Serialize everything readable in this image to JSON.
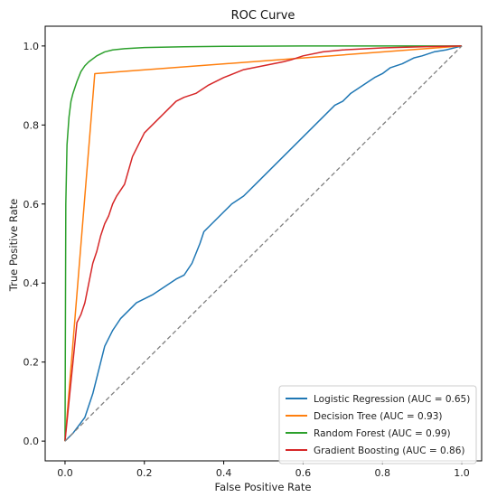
{
  "chart_data": {
    "type": "line",
    "title": "ROC Curve",
    "xlabel": "False Positive Rate",
    "ylabel": "True Positive Rate",
    "xlim": [
      -0.05,
      1.05
    ],
    "ylim": [
      -0.05,
      1.05
    ],
    "xticks": [
      "0.0",
      "0.2",
      "0.4",
      "0.6",
      "0.8",
      "1.0"
    ],
    "yticks": [
      "0.0",
      "0.2",
      "0.4",
      "0.6",
      "0.8",
      "1.0"
    ],
    "grid": false,
    "legend_position": "bottom-right",
    "series": [
      {
        "name": "Logistic Regression (AUC = 0.65)",
        "color": "#1f77b4",
        "x": [
          0,
          0.02,
          0.05,
          0.07,
          0.09,
          0.1,
          0.12,
          0.14,
          0.16,
          0.18,
          0.2,
          0.22,
          0.25,
          0.28,
          0.3,
          0.32,
          0.34,
          0.35,
          0.36,
          0.38,
          0.4,
          0.42,
          0.45,
          0.48,
          0.5,
          0.52,
          0.55,
          0.58,
          0.6,
          0.62,
          0.65,
          0.68,
          0.7,
          0.72,
          0.75,
          0.78,
          0.8,
          0.82,
          0.85,
          0.88,
          0.9,
          0.93,
          0.96,
          0.98,
          1.0
        ],
        "y": [
          0,
          0.02,
          0.06,
          0.12,
          0.2,
          0.24,
          0.28,
          0.31,
          0.33,
          0.35,
          0.36,
          0.37,
          0.39,
          0.41,
          0.42,
          0.45,
          0.5,
          0.53,
          0.54,
          0.56,
          0.58,
          0.6,
          0.62,
          0.65,
          0.67,
          0.69,
          0.72,
          0.75,
          0.77,
          0.79,
          0.82,
          0.85,
          0.86,
          0.88,
          0.9,
          0.92,
          0.93,
          0.945,
          0.955,
          0.97,
          0.975,
          0.985,
          0.99,
          0.995,
          1.0
        ]
      },
      {
        "name": "Decision Tree (AUC = 0.93)",
        "color": "#ff7f0e",
        "x": [
          0,
          0.075,
          1.0
        ],
        "y": [
          0,
          0.93,
          1.0
        ]
      },
      {
        "name": "Random Forest (AUC = 0.99)",
        "color": "#2ca02c",
        "x": [
          0,
          0.002,
          0.005,
          0.01,
          0.015,
          0.02,
          0.03,
          0.04,
          0.05,
          0.06,
          0.08,
          0.1,
          0.12,
          0.15,
          0.2,
          0.3,
          0.4,
          0.6,
          1.0
        ],
        "y": [
          0,
          0.6,
          0.75,
          0.82,
          0.86,
          0.88,
          0.91,
          0.935,
          0.95,
          0.96,
          0.975,
          0.985,
          0.99,
          0.993,
          0.996,
          0.998,
          0.999,
          1.0,
          1.0
        ]
      },
      {
        "name": "Gradient Boosting (AUC = 0.86)",
        "color": "#d62728",
        "x": [
          0,
          0.005,
          0.01,
          0.015,
          0.02,
          0.025,
          0.03,
          0.04,
          0.05,
          0.06,
          0.07,
          0.08,
          0.09,
          0.1,
          0.11,
          0.12,
          0.13,
          0.15,
          0.17,
          0.18,
          0.19,
          0.2,
          0.22,
          0.24,
          0.26,
          0.28,
          0.3,
          0.33,
          0.36,
          0.38,
          0.4,
          0.45,
          0.5,
          0.55,
          0.57,
          0.6,
          0.65,
          0.7,
          0.8,
          0.9,
          1.0
        ],
        "y": [
          0,
          0.05,
          0.1,
          0.15,
          0.2,
          0.25,
          0.3,
          0.32,
          0.35,
          0.4,
          0.45,
          0.48,
          0.52,
          0.55,
          0.57,
          0.6,
          0.62,
          0.65,
          0.72,
          0.74,
          0.76,
          0.78,
          0.8,
          0.82,
          0.84,
          0.86,
          0.87,
          0.88,
          0.9,
          0.91,
          0.92,
          0.94,
          0.95,
          0.96,
          0.965,
          0.975,
          0.985,
          0.99,
          0.995,
          0.998,
          1.0
        ]
      },
      {
        "name": "",
        "color": "#808080",
        "dashed": true,
        "x": [
          0,
          1
        ],
        "y": [
          0,
          1
        ]
      }
    ]
  }
}
